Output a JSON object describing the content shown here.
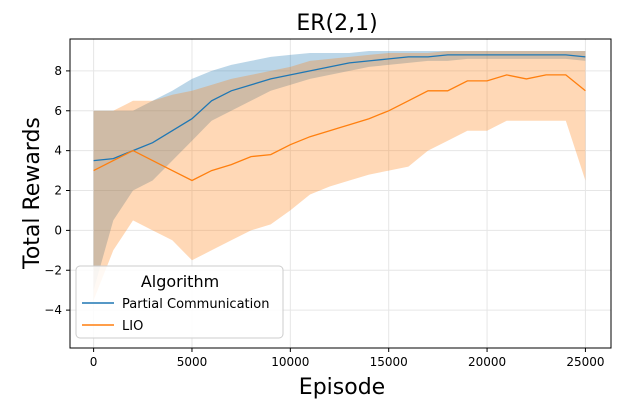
{
  "chart_data": {
    "type": "line",
    "title": "ER(2,1)",
    "xlabel": "Episode",
    "ylabel": "Total Rewards",
    "xlim": [
      -1200,
      26300
    ],
    "ylim": [
      -5.9,
      9.6
    ],
    "xticks": [
      0,
      5000,
      10000,
      15000,
      20000,
      25000
    ],
    "yticks": [
      -4,
      -2,
      0,
      2,
      4,
      6,
      8
    ],
    "grid": true,
    "legend": {
      "title": "Algorithm",
      "placement": "lower-left"
    },
    "series": [
      {
        "name": "Partial Communication",
        "color": "#1f77b4",
        "fill_color": "#1f77b4",
        "x": [
          0,
          1000,
          2000,
          3000,
          4000,
          5000,
          6000,
          7000,
          8000,
          9000,
          10000,
          11000,
          12000,
          13000,
          14000,
          15000,
          16000,
          17000,
          18000,
          19000,
          20000,
          21000,
          22000,
          23000,
          24000,
          25000
        ],
        "y": [
          3.5,
          3.6,
          4.0,
          4.4,
          5.0,
          5.6,
          6.5,
          7.0,
          7.3,
          7.6,
          7.8,
          8.0,
          8.2,
          8.4,
          8.5,
          8.6,
          8.7,
          8.7,
          8.8,
          8.8,
          8.8,
          8.8,
          8.8,
          8.8,
          8.8,
          8.7
        ],
        "y_low": [
          -3.0,
          0.5,
          2.0,
          2.5,
          3.5,
          4.5,
          5.5,
          6.0,
          6.5,
          7.0,
          7.3,
          7.6,
          7.8,
          8.0,
          8.2,
          8.3,
          8.4,
          8.5,
          8.5,
          8.6,
          8.6,
          8.6,
          8.6,
          8.6,
          8.6,
          8.5
        ],
        "y_high": [
          6.0,
          6.0,
          6.0,
          6.5,
          7.0,
          7.6,
          8.0,
          8.3,
          8.5,
          8.7,
          8.8,
          8.9,
          8.9,
          8.9,
          9.0,
          9.0,
          9.0,
          9.0,
          9.0,
          9.0,
          9.0,
          9.0,
          9.0,
          9.0,
          9.0,
          9.0
        ]
      },
      {
        "name": "LIO",
        "color": "#ff7f0e",
        "fill_color": "#ff7f0e",
        "x": [
          0,
          1000,
          2000,
          3000,
          4000,
          5000,
          6000,
          7000,
          8000,
          9000,
          10000,
          11000,
          12000,
          13000,
          14000,
          15000,
          16000,
          17000,
          18000,
          19000,
          20000,
          21000,
          22000,
          23000,
          24000,
          25000
        ],
        "y": [
          3.0,
          3.5,
          4.0,
          3.5,
          3.0,
          2.5,
          3.0,
          3.3,
          3.7,
          3.8,
          4.3,
          4.7,
          5.0,
          5.3,
          5.6,
          6.0,
          6.5,
          7.0,
          7.0,
          7.5,
          7.5,
          7.8,
          7.6,
          7.8,
          7.8,
          7.0
        ],
        "y_low": [
          -3.5,
          -1.0,
          0.5,
          0.0,
          -0.5,
          -1.5,
          -1.0,
          -0.5,
          0.0,
          0.3,
          1.0,
          1.8,
          2.2,
          2.5,
          2.8,
          3.0,
          3.2,
          4.0,
          4.5,
          5.0,
          5.0,
          5.5,
          5.5,
          5.5,
          5.5,
          2.5
        ],
        "y_high": [
          6.0,
          6.0,
          6.5,
          6.5,
          6.8,
          7.0,
          7.3,
          7.6,
          7.8,
          8.0,
          8.2,
          8.5,
          8.6,
          8.7,
          8.8,
          8.9,
          8.9,
          8.9,
          9.0,
          9.0,
          9.0,
          9.0,
          9.0,
          9.0,
          9.0,
          9.0
        ]
      }
    ]
  }
}
